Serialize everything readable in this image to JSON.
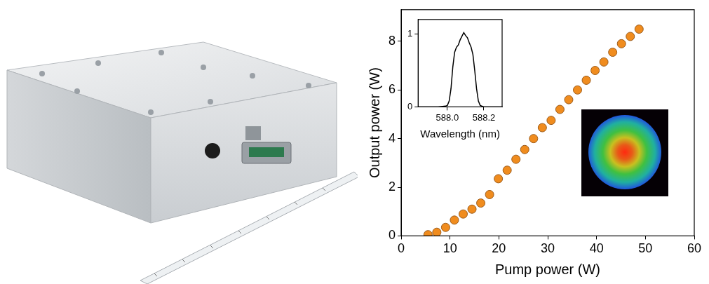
{
  "chart_data": [
    {
      "type": "scatter",
      "x_label": "Pump power (W)",
      "y_label": "Output power (W)",
      "x": [
        5.5,
        7.3,
        9.1,
        10.9,
        12.7,
        14.5,
        16.3,
        18.1,
        19.9,
        21.7,
        23.5,
        25.3,
        27.1,
        28.9,
        30.7,
        32.5,
        34.3,
        36.1,
        37.9,
        39.7,
        41.5,
        43.3,
        45.1,
        46.9,
        48.7
      ],
      "values": [
        0.05,
        0.15,
        0.35,
        0.65,
        0.9,
        1.1,
        1.35,
        1.7,
        2.35,
        2.7,
        3.15,
        3.55,
        4.0,
        4.45,
        4.75,
        5.2,
        5.6,
        6.0,
        6.4,
        6.8,
        7.15,
        7.55,
        7.9,
        8.2,
        8.5
      ],
      "color": "#f08c1e",
      "marker": "circle",
      "xlim": [
        0,
        60
      ],
      "xticks": [
        0,
        10,
        20,
        30,
        40,
        50,
        60
      ],
      "ylim": [
        0,
        9.3
      ],
      "yticks": [
        0,
        2,
        4,
        6,
        8
      ],
      "grid": false
    },
    {
      "type": "line",
      "x_label": "Wavelength (nm)",
      "x": [
        587.84,
        587.95,
        587.99,
        588.0,
        588.01,
        588.02,
        588.03,
        588.04,
        588.05,
        588.06,
        588.07,
        588.08,
        588.09,
        588.1,
        588.11,
        588.12,
        588.13,
        588.14,
        588.15,
        588.16,
        588.17,
        588.18,
        588.2,
        588.3
      ],
      "values": [
        0,
        0,
        0.01,
        0.02,
        0.08,
        0.25,
        0.55,
        0.75,
        0.82,
        0.85,
        0.92,
        0.97,
        1.02,
        0.98,
        0.95,
        0.88,
        0.82,
        0.72,
        0.5,
        0.25,
        0.08,
        0.02,
        0,
        0
      ],
      "color": "#000000",
      "line_style": "solid",
      "xlim": [
        587.84,
        588.3
      ],
      "xticks": [
        {
          "value": 588.0,
          "label": "588.0"
        },
        {
          "value": 588.2,
          "label": "588.2"
        }
      ],
      "ylim": [
        0,
        1.2
      ],
      "yticks": [
        0,
        1
      ],
      "grid": false
    }
  ]
}
